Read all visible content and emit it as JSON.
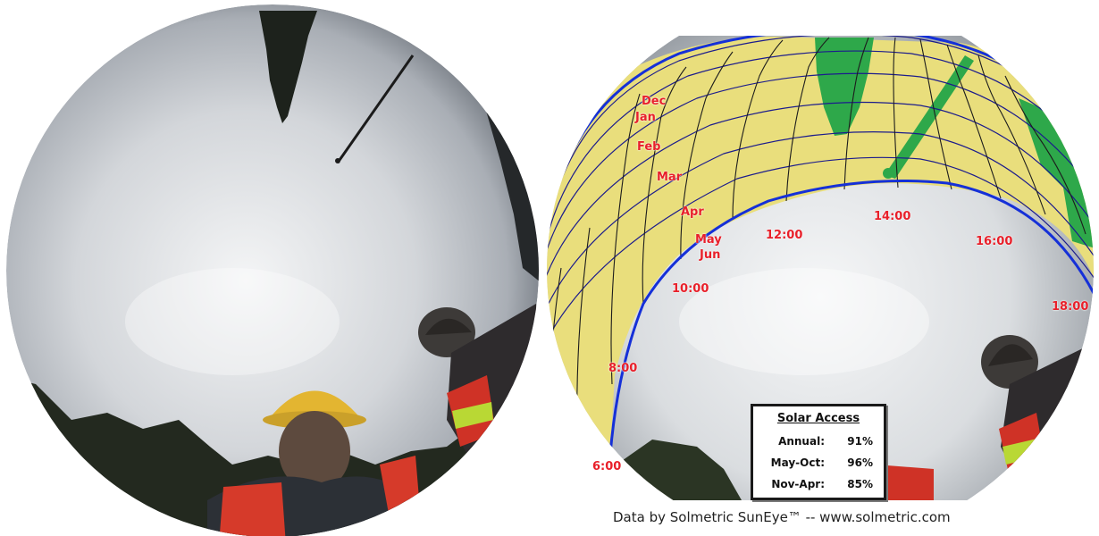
{
  "months": [
    "Dec",
    "Jan",
    "Feb",
    "Mar",
    "Apr",
    "May",
    "Jun"
  ],
  "hours": [
    "6:00",
    "8:00",
    "10:00",
    "12:00",
    "14:00",
    "16:00",
    "18:00"
  ],
  "solar_access": {
    "title": "Solar Access",
    "rows": [
      {
        "label": "Annual:",
        "value": "91%"
      },
      {
        "label": "May-Oct:",
        "value": "96%"
      },
      {
        "label": "Nov-Apr:",
        "value": "85%"
      }
    ]
  },
  "credit": "Data by Solmetric SunEye™ -- www.solmetric.com",
  "colors": {
    "sun_path_fill": "#e9de7c",
    "grid_line": "#1c1c8c",
    "boundary": "#1530d8",
    "label_red": "#e8202a",
    "shade_green": "#2ea84a"
  }
}
